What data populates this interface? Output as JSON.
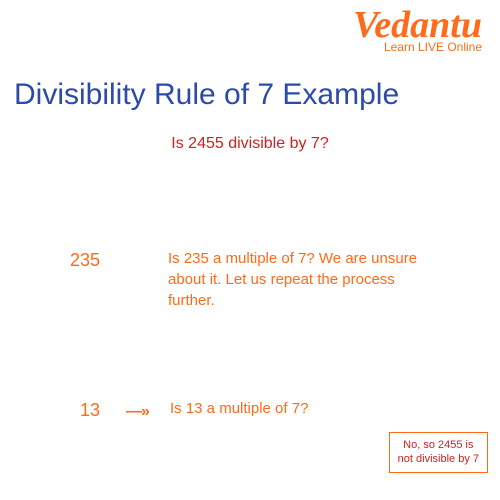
{
  "logo": {
    "brand": "Vedantu",
    "tagline": "Learn LIVE Online"
  },
  "title": "Divisibility Rule of 7 Example",
  "question": "Is 2455 divisible by 7?",
  "step1": {
    "number": "235",
    "explanation": "Is 235 a multiple of 7? We are unsure about it. Let us repeat the process further."
  },
  "step2": {
    "number": "13",
    "arrow": "—»",
    "explanation": "Is 13 a multiple of 7?"
  },
  "answer": {
    "line1": "No, so 2455 is",
    "line2": "not divisible by 7"
  },
  "colors": {
    "brand_orange": "#ff6b1a",
    "title_blue": "#2c4ba8",
    "question_red": "#d32020",
    "background": "#ffffff"
  },
  "fonts": {
    "title_size": 30,
    "body_size": 15,
    "question_size": 16
  }
}
